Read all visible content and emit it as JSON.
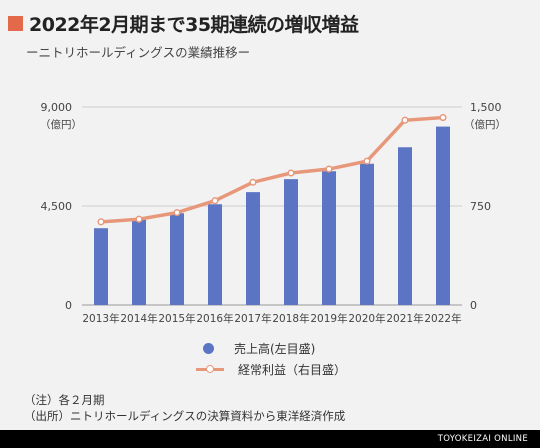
{
  "header": {
    "title": "2022年2月期まで35期連続の増収増益",
    "subtitle": "ーニトリホールディングスの業績推移ー"
  },
  "colors": {
    "accent": "#e2694a",
    "bar": "#5b74c4",
    "line": "#e8987a"
  },
  "chart_data": {
    "type": "bar",
    "categories": [
      "2013年",
      "2014年",
      "2015年",
      "2016年",
      "2017年",
      "2018年",
      "2019年",
      "2020年",
      "2021年",
      "2022年"
    ],
    "series": [
      {
        "name": "売上高(左目盛)",
        "type": "bar",
        "axis": "left",
        "values": [
          3490,
          3880,
          4170,
          4580,
          5130,
          5720,
          6080,
          6420,
          7170,
          8110
        ]
      },
      {
        "name": "経常利益（右目盛）",
        "type": "line",
        "axis": "right",
        "values": [
          630,
          650,
          700,
          790,
          930,
          1000,
          1030,
          1090,
          1400,
          1420
        ]
      }
    ],
    "y_left": {
      "ticks": [
        "9,000",
        "4,500",
        "0"
      ],
      "unit": "（億円）",
      "range": [
        0,
        9000
      ]
    },
    "y_right": {
      "ticks": [
        "1,500",
        "750",
        "0"
      ],
      "unit": "（億円）",
      "range": [
        0,
        1500
      ]
    },
    "grid": true,
    "legend_position": "bottom"
  },
  "legend": {
    "sales": "売上高(左目盛)",
    "profit": "経常利益（右目盛）"
  },
  "notes": {
    "note1": "（注）各２月期",
    "note2": "（出所）ニトリホールディングスの決算資料から東洋経済作成"
  },
  "footer": {
    "brand": "TOYOKEIZAI ONLINE"
  }
}
